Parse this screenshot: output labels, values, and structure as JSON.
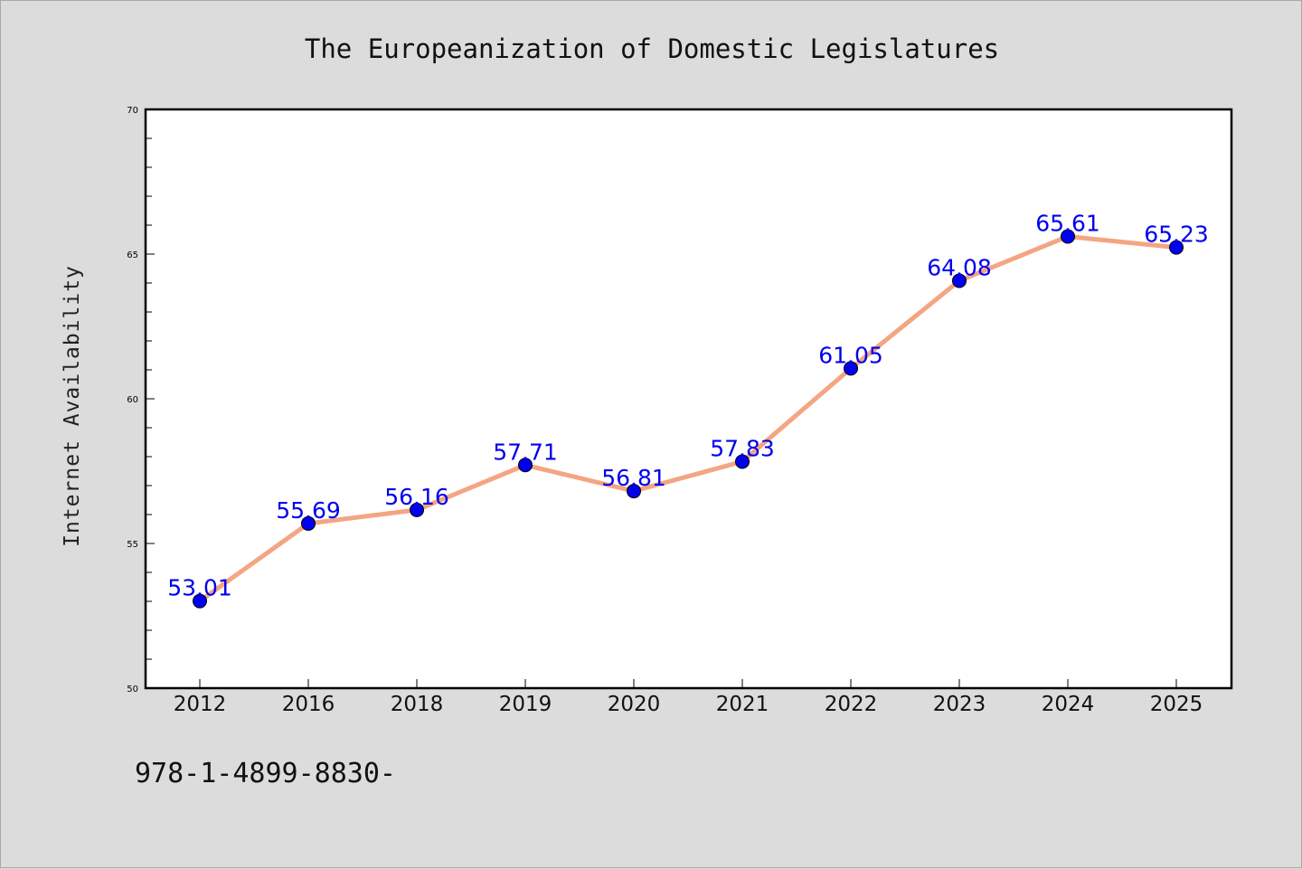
{
  "chart_data": {
    "type": "line",
    "title": "The Europeanization of Domestic Legislatures",
    "xlabel": "",
    "ylabel": "Internet Availability",
    "categories": [
      "2012",
      "2016",
      "2018",
      "2019",
      "2020",
      "2021",
      "2022",
      "2023",
      "2024",
      "2025"
    ],
    "series": [
      {
        "values": [
          53.01,
          55.69,
          56.16,
          57.71,
          56.81,
          57.83,
          61.05,
          64.08,
          65.61,
          65.23
        ],
        "line_color": "#f4a582",
        "marker_color": "#0000ee"
      }
    ],
    "ylim": [
      50,
      70
    ],
    "yticks": [
      "50",
      "55",
      "60",
      "65",
      "70"
    ],
    "data_label_color": "#0000ee",
    "grid": false,
    "legend": "none"
  },
  "footer": {
    "text": "978-1-4899-8830-"
  }
}
